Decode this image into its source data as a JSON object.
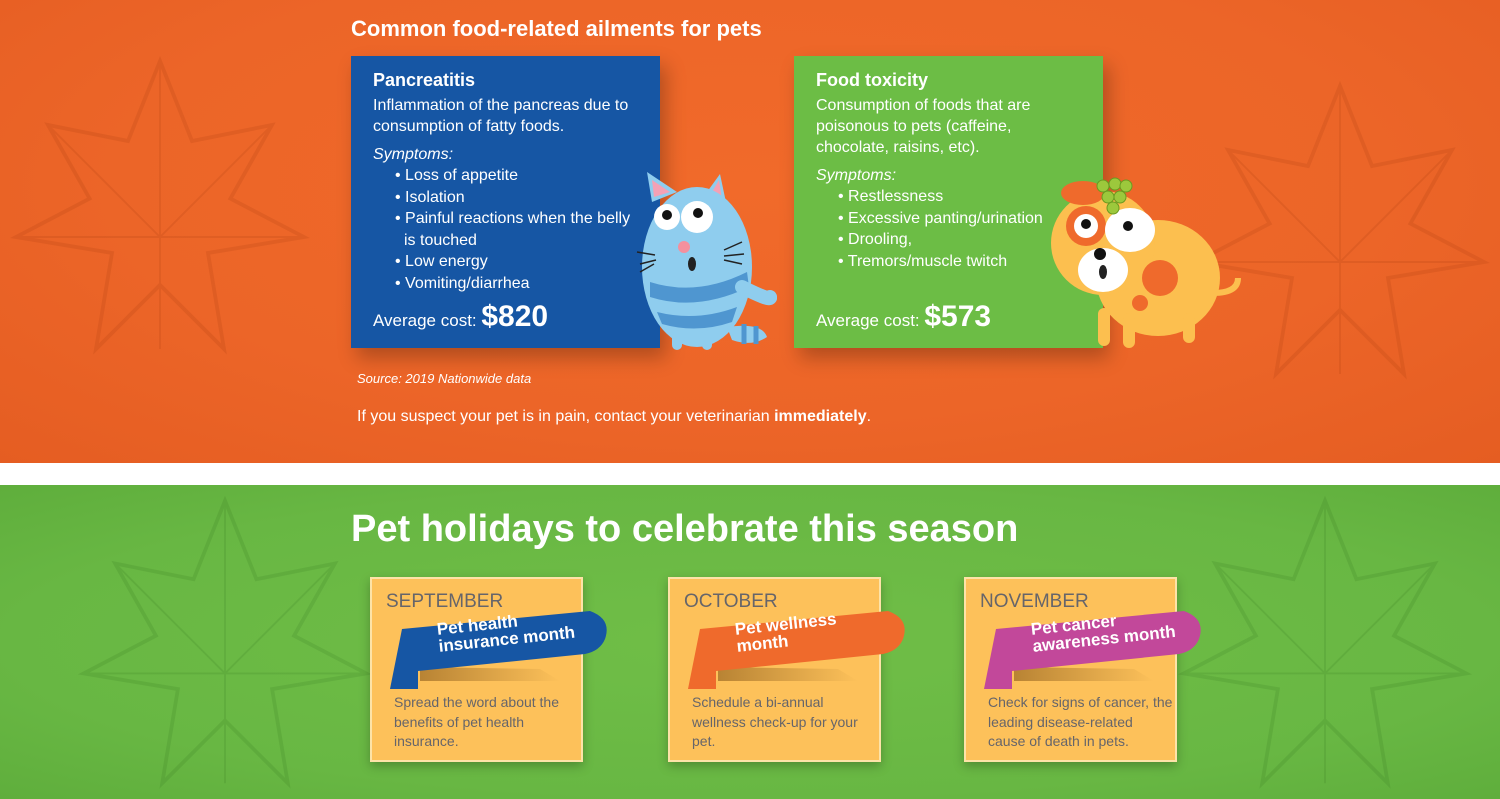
{
  "ailments": {
    "title": "Common food-related ailments for pets",
    "cards": [
      {
        "name": "Pancreatitis",
        "description": "Inflammation of the pancreas due to consumption of fatty foods.",
        "symptoms_label": "Symptoms:",
        "symptoms": [
          "Loss of appetite",
          "Isolation",
          "Painful reactions when the belly is touched",
          "Low energy",
          "Vomiting/diarrhea"
        ],
        "cost_label": "Average cost:",
        "cost": "$820",
        "color": "#1656a4"
      },
      {
        "name": "Food toxicity",
        "description": "Consumption of foods that are poisonous to pets (caffeine, chocolate, raisins, etc).",
        "symptoms_label": "Symptoms:",
        "symptoms": [
          "Restlessness",
          "Excessive panting/urination",
          "Drooling,",
          "Tremors/muscle twitch"
        ],
        "cost_label": "Average cost:",
        "cost": "$573",
        "color": "#6cbd45"
      }
    ],
    "source": "Source: 2019 Nationwide data",
    "note_text": "If you suspect your pet is in pain, contact your veterinarian ",
    "note_bold": "immediately",
    "note_end": ".",
    "background": "#ec6528"
  },
  "holidays": {
    "title": "Pet holidays to celebrate this season",
    "background": "#68b743",
    "cards": [
      {
        "month": "SEPTEMBER",
        "line1": "Pet health",
        "line2": "insurance month",
        "description": "Spread the word about the benefits of pet health insurance.",
        "color": "#1656a4"
      },
      {
        "month": "OCTOBER",
        "line1": "Pet wellness",
        "line2": "month",
        "description": "Schedule a bi-annual wellness check-up for your pet.",
        "color": "#ef6a2c"
      },
      {
        "month": "NOVEMBER",
        "line1": "Pet cancer",
        "line2": "awareness month",
        "description": "Check for signs of cancer, the leading disease-related cause of death in pets.",
        "color": "#c2489a"
      }
    ]
  }
}
